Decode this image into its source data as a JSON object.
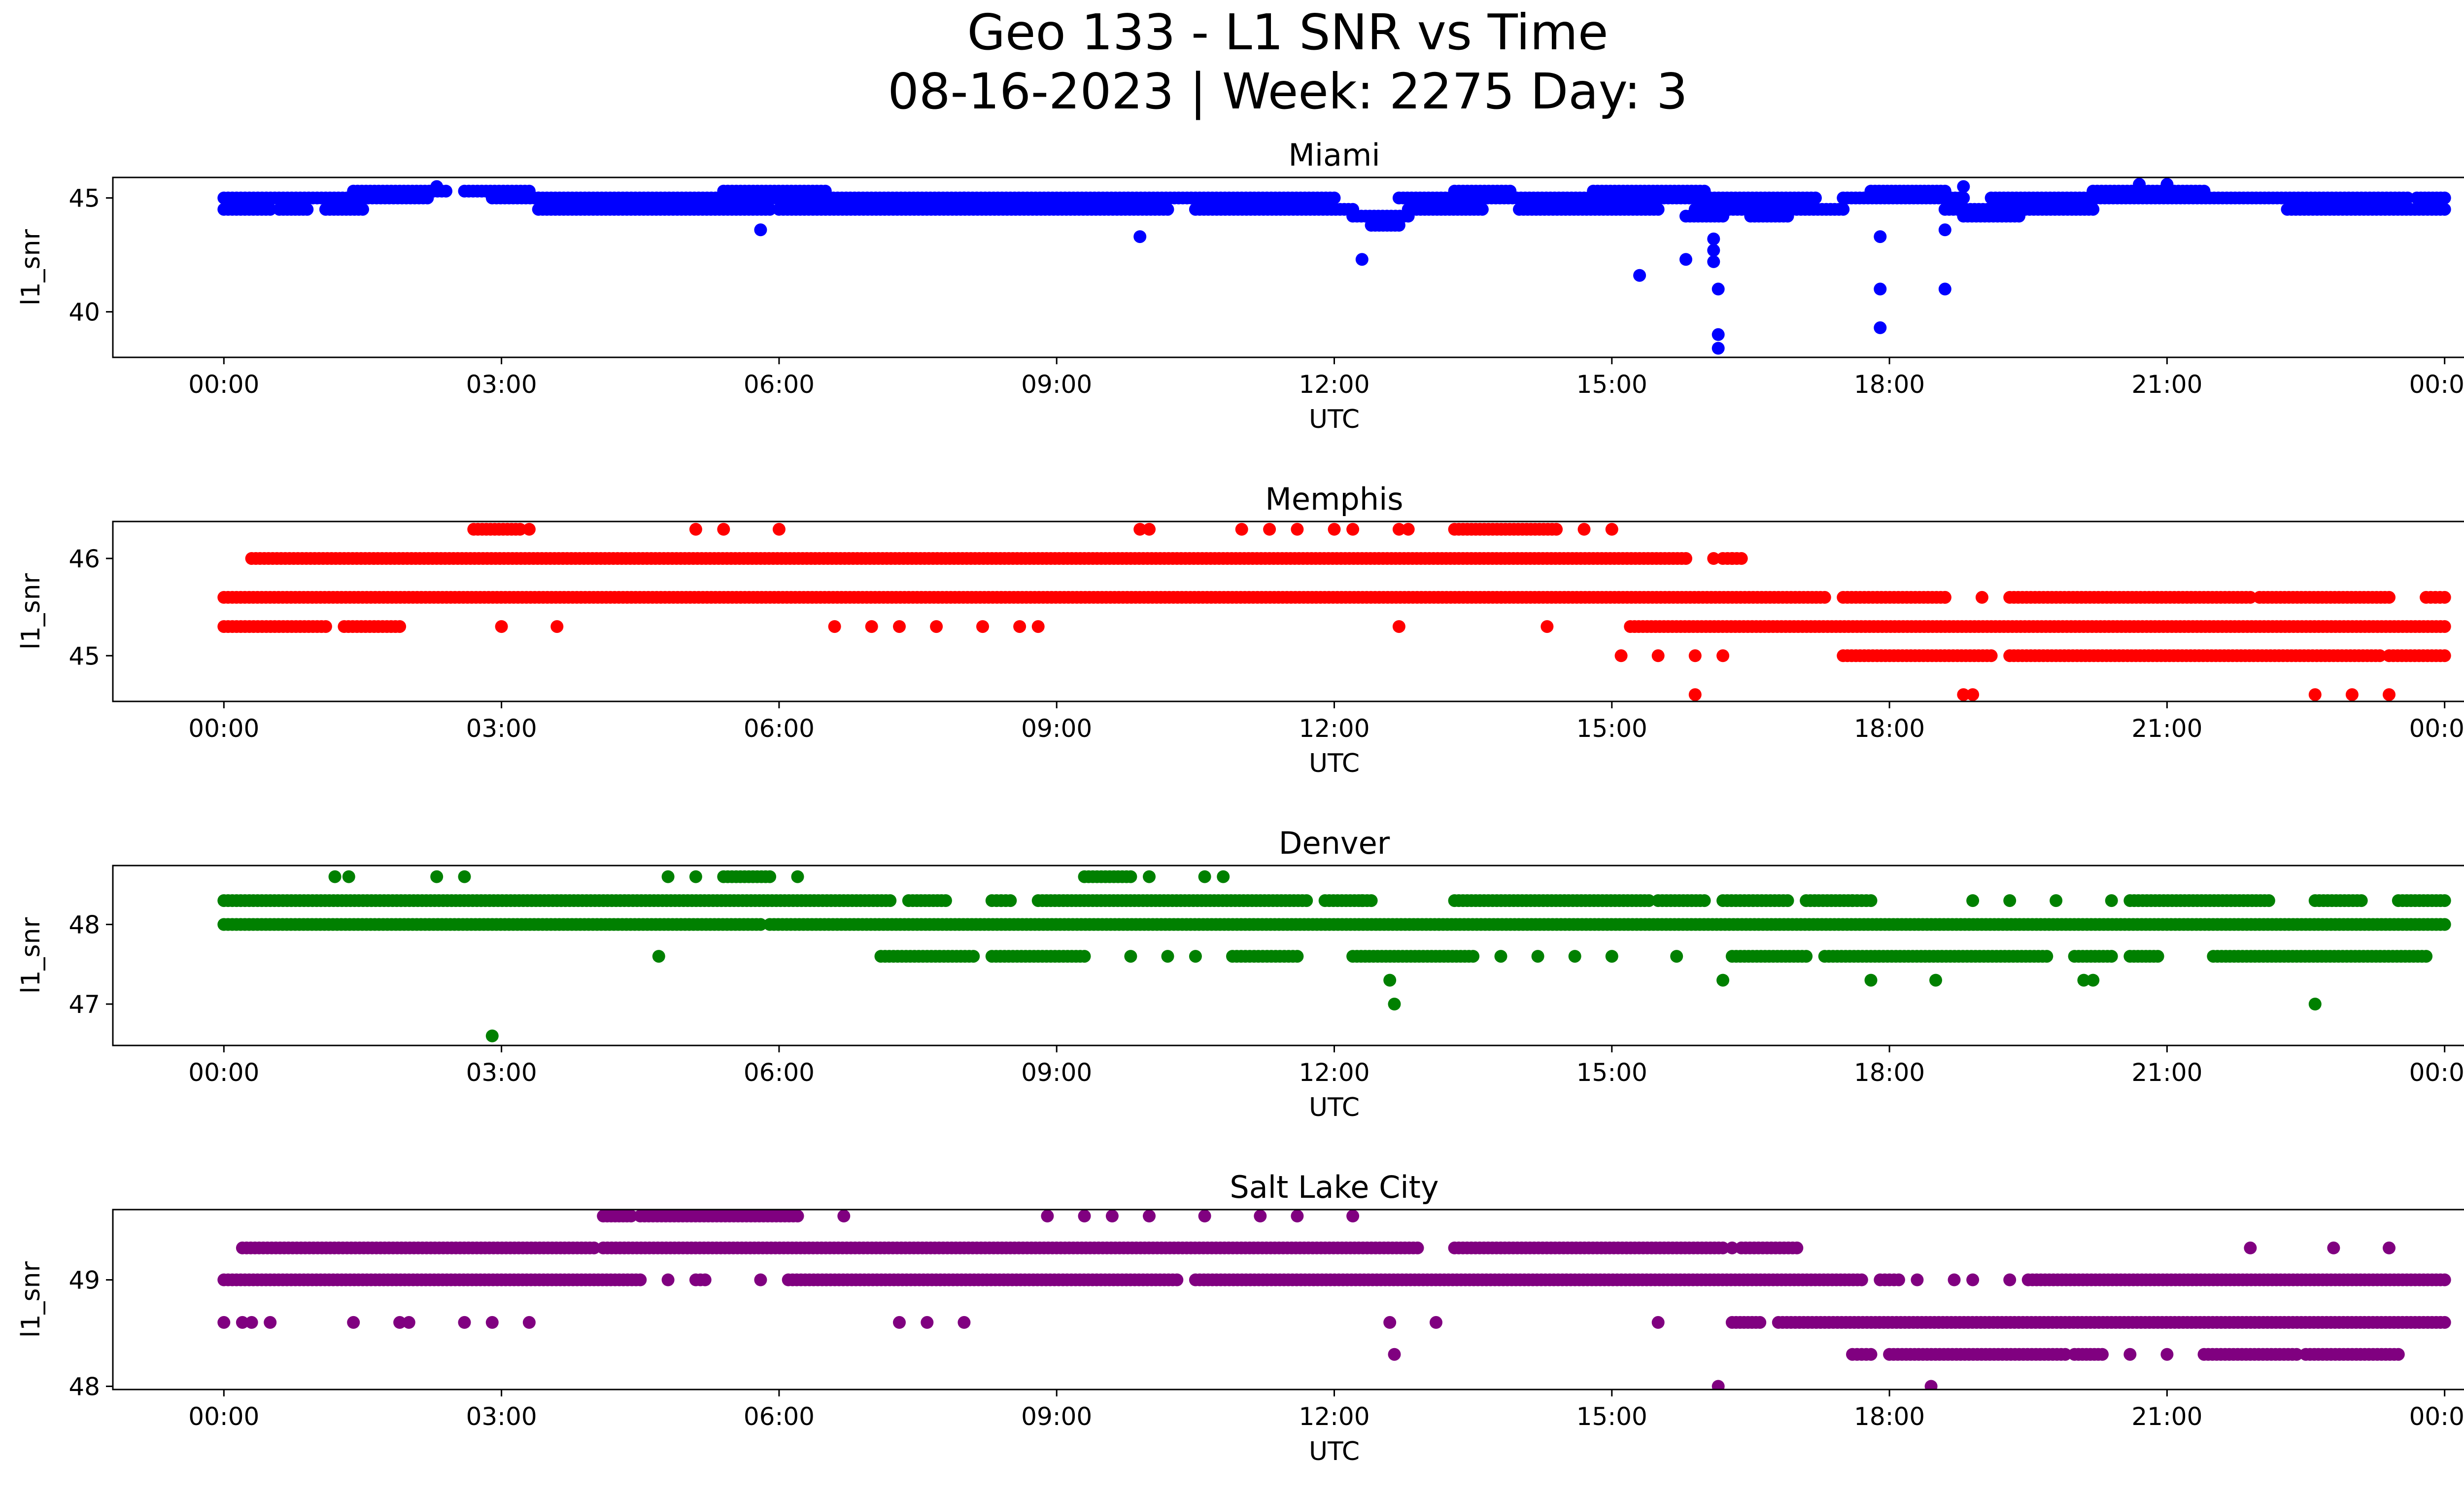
{
  "figure": {
    "title_line1": "Geo 133 - L1 SNR vs Time",
    "title_line2": "08-16-2023 | Week: 2275 Day: 3"
  },
  "chart_data": [
    {
      "type": "scatter",
      "title": "Miami",
      "xlabel": "UTC",
      "ylabel": "l1_snr",
      "color": "#0000ff",
      "x_ticks": [
        "00:00",
        "03:00",
        "06:00",
        "09:00",
        "12:00",
        "15:00",
        "18:00",
        "21:00",
        "00:00"
      ],
      "x_tick_hours": [
        0,
        3,
        6,
        9,
        12,
        15,
        18,
        21,
        24
      ],
      "xlim_hours": [
        -1.2,
        25.2
      ],
      "ylim": [
        38.0,
        45.9
      ],
      "y_ticks": [
        40,
        45
      ],
      "bands": [
        {
          "y": 44.5,
          "ranges": [
            [
              0,
              0.5
            ],
            [
              0.6,
              0.9
            ],
            [
              1.1,
              1.5
            ],
            [
              3.4,
              5.9
            ],
            [
              6,
              10.2
            ],
            [
              10.5,
              12.2
            ],
            [
              12.8,
              13.6
            ],
            [
              14,
              15.5
            ],
            [
              15.9,
              17.5
            ],
            [
              18.6,
              20.2
            ],
            [
              22.3,
              24
            ]
          ]
        },
        {
          "y": 45.0,
          "ranges": [
            [
              0,
              2.2
            ],
            [
              2.9,
              3.4
            ],
            [
              3.4,
              8
            ],
            [
              8,
              12
            ],
            [
              12.7,
              17.2
            ],
            [
              17.5,
              18.8
            ],
            [
              19.1,
              23.6
            ],
            [
              23.7,
              24
            ]
          ]
        },
        {
          "y": 45.3,
          "ranges": [
            [
              1.4,
              2.4
            ],
            [
              2.6,
              3.3
            ],
            [
              5.4,
              6.5
            ],
            [
              13.3,
              13.9
            ],
            [
              14.8,
              16
            ],
            [
              17.8,
              18.6
            ],
            [
              20.2,
              21.4
            ]
          ]
        },
        {
          "y": 44.2,
          "ranges": [
            [
              12.2,
              12.8
            ],
            [
              15.8,
              16.2
            ],
            [
              16.5,
              16.9
            ],
            [
              18.8,
              19.4
            ]
          ]
        },
        {
          "y": 43.8,
          "ranges": [
            [
              12.4,
              12.7
            ]
          ]
        }
      ],
      "points": [
        [
          5.8,
          43.6
        ],
        [
          9.9,
          43.3
        ],
        [
          12.3,
          42.3
        ],
        [
          15.3,
          41.6
        ],
        [
          15.8,
          42.3
        ],
        [
          16.1,
          43.2
        ],
        [
          16.1,
          42.7
        ],
        [
          16.1,
          42.2
        ],
        [
          16.15,
          41.0
        ],
        [
          16.15,
          39.0
        ],
        [
          16.15,
          38.4
        ],
        [
          17.9,
          43.3
        ],
        [
          17.9,
          41.0
        ],
        [
          17.9,
          39.3
        ],
        [
          18.6,
          43.6
        ],
        [
          18.6,
          41.0
        ],
        [
          18.8,
          45.5
        ],
        [
          20.7,
          45.6
        ],
        [
          21.0,
          45.6
        ],
        [
          2.3,
          45.5
        ]
      ]
    },
    {
      "type": "scatter",
      "title": "Memphis",
      "xlabel": "UTC",
      "ylabel": "l1_snr",
      "color": "#ff0000",
      "x_ticks": [
        "00:00",
        "03:00",
        "06:00",
        "09:00",
        "12:00",
        "15:00",
        "18:00",
        "21:00",
        "00:00"
      ],
      "x_tick_hours": [
        0,
        3,
        6,
        9,
        12,
        15,
        18,
        21,
        24
      ],
      "xlim_hours": [
        -1.2,
        25.2
      ],
      "ylim": [
        44.53,
        46.38
      ],
      "y_ticks": [
        45,
        46
      ],
      "y_tick_labels": [
        "45",
        "46"
      ],
      "bands": [
        {
          "y": 45.6,
          "ranges": [
            [
              0,
              17.3
            ],
            [
              17.5,
              18.6
            ],
            [
              19.3,
              21.9
            ],
            [
              22,
              23.4
            ],
            [
              23.8,
              24
            ]
          ]
        },
        {
          "y": 46.0,
          "ranges": [
            [
              0.3,
              15.8
            ],
            [
              16.2,
              16.4
            ]
          ]
        },
        {
          "y": 45.3,
          "ranges": [
            [
              0,
              1.1
            ],
            [
              1.3,
              1.9
            ],
            [
              15.2,
              24
            ]
          ]
        },
        {
          "y": 45.0,
          "ranges": [
            [
              17.5,
              19.1
            ],
            [
              19.3,
              23.3
            ],
            [
              23.4,
              24
            ]
          ]
        },
        {
          "y": 46.3,
          "ranges": [
            [
              2.7,
              3.2
            ],
            [
              13.3,
              14.4
            ]
          ]
        }
      ],
      "points": [
        [
          3.0,
          45.3
        ],
        [
          3.6,
          45.3
        ],
        [
          6.6,
          45.3
        ],
        [
          7.0,
          45.3
        ],
        [
          7.3,
          45.3
        ],
        [
          7.7,
          45.3
        ],
        [
          8.2,
          45.3
        ],
        [
          8.6,
          45.3
        ],
        [
          8.8,
          45.3
        ],
        [
          12.7,
          45.3
        ],
        [
          14.3,
          45.3
        ],
        [
          15.1,
          45.0
        ],
        [
          15.5,
          45.0
        ],
        [
          15.9,
          44.6
        ],
        [
          15.9,
          45.0
        ],
        [
          16.2,
          45.0
        ],
        [
          18.9,
          44.6
        ],
        [
          18.8,
          44.6
        ],
        [
          22.6,
          44.6
        ],
        [
          23.0,
          44.6
        ],
        [
          23.4,
          44.6
        ],
        [
          3.3,
          46.3
        ],
        [
          5.1,
          46.3
        ],
        [
          5.4,
          46.3
        ],
        [
          6.0,
          46.3
        ],
        [
          9.9,
          46.3
        ],
        [
          10.0,
          46.3
        ],
        [
          11.0,
          46.3
        ],
        [
          11.3,
          46.3
        ],
        [
          11.6,
          46.3
        ],
        [
          12.0,
          46.3
        ],
        [
          12.2,
          46.3
        ],
        [
          12.7,
          46.3
        ],
        [
          12.8,
          46.3
        ],
        [
          14.7,
          46.3
        ],
        [
          15.0,
          46.3
        ],
        [
          16.1,
          46.0
        ],
        [
          16.3,
          46.0
        ],
        [
          18.6,
          45.6
        ],
        [
          19.0,
          45.6
        ]
      ]
    },
    {
      "type": "scatter",
      "title": "Denver",
      "xlabel": "UTC",
      "ylabel": "l1_snr",
      "color": "#008000",
      "x_ticks": [
        "00:00",
        "03:00",
        "06:00",
        "09:00",
        "12:00",
        "15:00",
        "18:00",
        "21:00",
        "00:00"
      ],
      "x_tick_hours": [
        0,
        3,
        6,
        9,
        12,
        15,
        18,
        21,
        24
      ],
      "xlim_hours": [
        -1.2,
        25.2
      ],
      "ylim": [
        46.48,
        48.74
      ],
      "y_ticks": [
        47,
        48
      ],
      "bands": [
        {
          "y": 48.0,
          "ranges": [
            [
              0,
              5.8
            ],
            [
              5.9,
              24
            ]
          ]
        },
        {
          "y": 48.3,
          "ranges": [
            [
              0,
              7.2
            ],
            [
              7.4,
              7.8
            ],
            [
              8.3,
              8.5
            ],
            [
              8.8,
              11.7
            ],
            [
              11.9,
              12.4
            ],
            [
              13.3,
              15.4
            ],
            [
              15.5,
              16
            ],
            [
              16.2,
              16.9
            ],
            [
              17.1,
              17.6
            ],
            [
              17.6,
              17.8
            ],
            [
              20.6,
              22.1
            ],
            [
              22.6,
              23.1
            ],
            [
              23.5,
              24
            ]
          ]
        },
        {
          "y": 47.6,
          "ranges": [
            [
              7.1,
              8.1
            ],
            [
              8.3,
              9.3
            ],
            [
              10.9,
              11.6
            ],
            [
              12.2,
              13.5
            ],
            [
              16.3,
              17.1
            ],
            [
              17.3,
              19.7
            ],
            [
              20,
              20.4
            ],
            [
              20.6,
              20.9
            ],
            [
              21.5,
              23.8
            ]
          ]
        },
        {
          "y": 48.6,
          "ranges": [
            [
              5.4,
              5.9
            ],
            [
              9.3,
              9.8
            ]
          ]
        }
      ],
      "points": [
        [
          2.9,
          46.6
        ],
        [
          4.7,
          47.6
        ],
        [
          9.8,
          47.6
        ],
        [
          10.2,
          47.6
        ],
        [
          10.5,
          47.6
        ],
        [
          12.6,
          47.3
        ],
        [
          12.65,
          47.0
        ],
        [
          13.8,
          47.6
        ],
        [
          14.2,
          47.6
        ],
        [
          14.6,
          47.6
        ],
        [
          15.0,
          47.6
        ],
        [
          15.7,
          47.6
        ],
        [
          16.2,
          47.3
        ],
        [
          17.8,
          47.3
        ],
        [
          18.5,
          47.3
        ],
        [
          20.1,
          47.3
        ],
        [
          20.2,
          47.3
        ],
        [
          22.6,
          47.0
        ],
        [
          1.2,
          48.6
        ],
        [
          1.35,
          48.6
        ],
        [
          2.3,
          48.6
        ],
        [
          2.6,
          48.6
        ],
        [
          4.8,
          48.6
        ],
        [
          5.1,
          48.6
        ],
        [
          6.2,
          48.6
        ],
        [
          10.0,
          48.6
        ],
        [
          10.6,
          48.6
        ],
        [
          10.8,
          48.6
        ],
        [
          12.3,
          48.3
        ],
        [
          18.9,
          48.3
        ],
        [
          19.3,
          48.3
        ],
        [
          19.8,
          48.3
        ],
        [
          20.4,
          48.3
        ]
      ]
    },
    {
      "type": "scatter",
      "title": "Salt Lake City",
      "xlabel": "UTC",
      "ylabel": "l1_snr",
      "color": "#800080",
      "x_ticks": [
        "00:00",
        "03:00",
        "06:00",
        "09:00",
        "12:00",
        "15:00",
        "18:00",
        "21:00",
        "00:00"
      ],
      "x_tick_hours": [
        0,
        3,
        6,
        9,
        12,
        15,
        18,
        21,
        24
      ],
      "xlim_hours": [
        -1.2,
        25.2
      ],
      "ylim": [
        47.97,
        49.66
      ],
      "y_ticks": [
        48,
        49
      ],
      "bands": [
        {
          "y": 49.0,
          "ranges": [
            [
              0,
              4.5
            ],
            [
              5.1,
              5.2
            ],
            [
              6.1,
              10.3
            ],
            [
              10.5,
              17.7
            ],
            [
              17.9,
              18.1
            ],
            [
              19.5,
              24
            ]
          ]
        },
        {
          "y": 49.3,
          "ranges": [
            [
              0.2,
              4
            ],
            [
              4.1,
              12.9
            ],
            [
              13.3,
              16.2
            ],
            [
              16.4,
              17.0
            ]
          ]
        },
        {
          "y": 48.6,
          "ranges": [
            [
              16.3,
              16.6
            ],
            [
              16.8,
              24
            ]
          ]
        },
        {
          "y": 48.3,
          "ranges": [
            [
              17.6,
              17.8
            ],
            [
              18.0,
              19.9
            ],
            [
              20.0,
              20.3
            ],
            [
              21.4,
              22.4
            ],
            [
              22.5,
              23.5
            ]
          ]
        },
        {
          "y": 49.6,
          "ranges": [
            [
              4.1,
              4.4
            ],
            [
              4.5,
              6.2
            ]
          ]
        }
      ],
      "points": [
        [
          0,
          48.6
        ],
        [
          0.2,
          48.6
        ],
        [
          0.3,
          48.6
        ],
        [
          0.5,
          48.6
        ],
        [
          1.4,
          48.6
        ],
        [
          1.9,
          48.6
        ],
        [
          2.0,
          48.6
        ],
        [
          2.6,
          48.6
        ],
        [
          2.9,
          48.6
        ],
        [
          3.3,
          48.6
        ],
        [
          7.3,
          48.6
        ],
        [
          7.6,
          48.6
        ],
        [
          8.0,
          48.6
        ],
        [
          12.6,
          48.6
        ],
        [
          13.1,
          48.6
        ],
        [
          15.5,
          48.6
        ],
        [
          12.65,
          48.3
        ],
        [
          16.15,
          48.0
        ],
        [
          18.45,
          48.0
        ],
        [
          20.6,
          48.3
        ],
        [
          21.0,
          48.3
        ],
        [
          4.8,
          49.0
        ],
        [
          5.8,
          49.0
        ],
        [
          8.9,
          49.6
        ],
        [
          9.3,
          49.6
        ],
        [
          9.6,
          49.6
        ],
        [
          10.0,
          49.6
        ],
        [
          10.6,
          49.6
        ],
        [
          11.2,
          49.6
        ],
        [
          11.6,
          49.6
        ],
        [
          12.2,
          49.6
        ],
        [
          6.7,
          49.6
        ],
        [
          18.3,
          49.0
        ],
        [
          18.7,
          49.0
        ],
        [
          18.9,
          49.0
        ],
        [
          19.3,
          49.0
        ],
        [
          22.8,
          49.3
        ],
        [
          23.4,
          49.3
        ],
        [
          21.9,
          49.3
        ],
        [
          16.3,
          49.3
        ]
      ]
    }
  ]
}
